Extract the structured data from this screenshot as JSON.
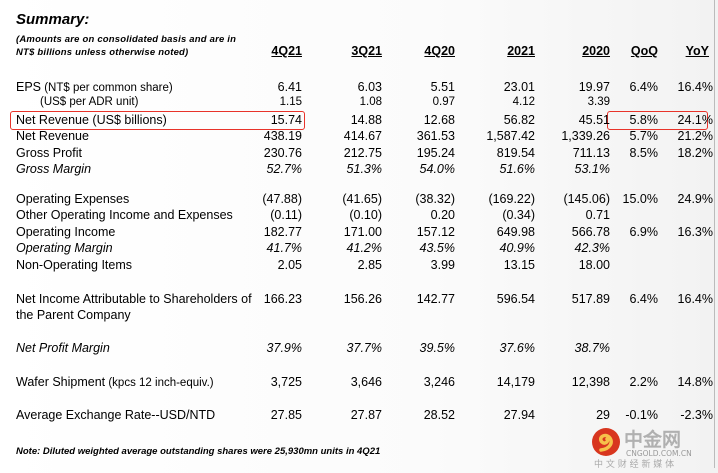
{
  "title": "Summary:",
  "subtitle": [
    "(Amounts are on consolidated basis and are in",
    "NT$ billions unless otherwise noted)"
  ],
  "columns": [
    "4Q21",
    "3Q21",
    "4Q20",
    "2021",
    "2020",
    "QoQ",
    "YoY"
  ],
  "rows": [
    {
      "label": "EPS",
      "label_suffix": " (NT$ per common share)",
      "values": [
        "6.41",
        "6.03",
        "5.51",
        "23.01",
        "19.97",
        "6.4%",
        "16.4%"
      ]
    },
    {
      "label": "(US$ per ADR unit)",
      "values": [
        "1.15",
        "1.08",
        "0.97",
        "4.12",
        "3.39",
        "",
        ""
      ]
    },
    {
      "label": "Net Revenue (US$ billions)",
      "values": [
        "15.74",
        "14.88",
        "12.68",
        "56.82",
        "45.51",
        "5.8%",
        "24.1%"
      ],
      "highlighted": true
    },
    {
      "label": "Net Revenue",
      "values": [
        "438.19",
        "414.67",
        "361.53",
        "1,587.42",
        "1,339.26",
        "5.7%",
        "21.2%"
      ]
    },
    {
      "label": "Gross Profit",
      "values": [
        "230.76",
        "212.75",
        "195.24",
        "819.54",
        "711.13",
        "8.5%",
        "18.2%"
      ]
    },
    {
      "label": "Gross Margin",
      "values": [
        "52.7%",
        "51.3%",
        "54.0%",
        "51.6%",
        "53.1%",
        "",
        ""
      ]
    },
    {
      "label": "Operating Expenses",
      "values": [
        "(47.88)",
        "(41.65)",
        "(38.32)",
        "(169.22)",
        "(145.06)",
        "15.0%",
        "24.9%"
      ]
    },
    {
      "label": "Other Operating Income and Expenses",
      "values": [
        "(0.11)",
        "(0.10)",
        "0.20",
        "(0.34)",
        "0.71",
        "",
        ""
      ]
    },
    {
      "label": "Operating Income",
      "values": [
        "182.77",
        "171.00",
        "157.12",
        "649.98",
        "566.78",
        "6.9%",
        "16.3%"
      ]
    },
    {
      "label": "Operating Margin",
      "values": [
        "41.7%",
        "41.2%",
        "43.5%",
        "40.9%",
        "42.3%",
        "",
        ""
      ]
    },
    {
      "label": "Non-Operating Items",
      "values": [
        "2.05",
        "2.85",
        "3.99",
        "13.15",
        "18.00",
        "",
        ""
      ]
    },
    {
      "label": "Net Income Attributable to Shareholders of",
      "label2": "the Parent Company",
      "values": [
        "166.23",
        "156.26",
        "142.77",
        "596.54",
        "517.89",
        "6.4%",
        "16.4%"
      ]
    },
    {
      "label": "Net Profit Margin",
      "values": [
        "37.9%",
        "37.7%",
        "39.5%",
        "37.6%",
        "38.7%",
        "",
        ""
      ]
    },
    {
      "label": "Wafer Shipment",
      "label_suffix": " (kpcs 12 inch-equiv.)",
      "values": [
        "3,725",
        "3,646",
        "3,246",
        "14,179",
        "12,398",
        "2.2%",
        "14.8%"
      ]
    },
    {
      "label": "Average Exchange Rate--USD/NTD",
      "values": [
        "27.85",
        "27.87",
        "28.52",
        "27.94",
        "29",
        "-0.1%",
        "-2.3%"
      ]
    }
  ],
  "note": "Note: Diluted weighted average outstanding shares were 25,930mn units in 4Q21",
  "watermark": {
    "brand": "中金网",
    "domain": "CNGOLD.COM.CN",
    "tagline": "中 文 财 经 新 媒 体"
  },
  "colors": {
    "highlight": "#e8332a"
  }
}
